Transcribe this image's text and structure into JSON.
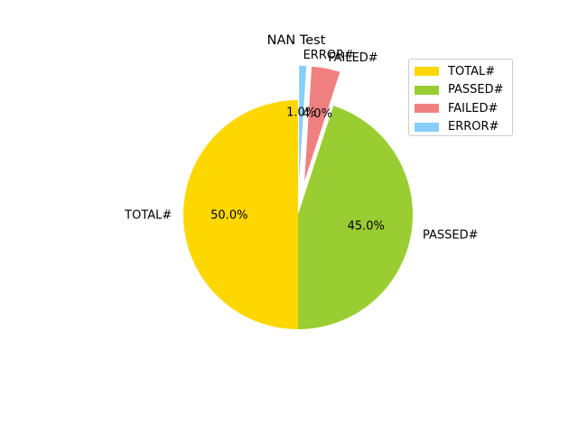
{
  "chart_data": {
    "type": "pie",
    "title": "NAN Test",
    "categories": [
      "TOTAL#",
      "PASSED#",
      "FAILED#",
      "ERROR#"
    ],
    "values": [
      50.0,
      45.0,
      4.0,
      1.0
    ],
    "value_labels": [
      "50.0%",
      "45.0%",
      "4.0%",
      "1.0%"
    ],
    "colors": [
      "#FFD700",
      "#9ACD32",
      "#F08080",
      "#87CEFA"
    ],
    "exploded": [
      false,
      false,
      true,
      true
    ],
    "legend_position": "upper-right",
    "legend": [
      "TOTAL#",
      "PASSED#",
      "FAILED#",
      "ERROR#"
    ]
  }
}
